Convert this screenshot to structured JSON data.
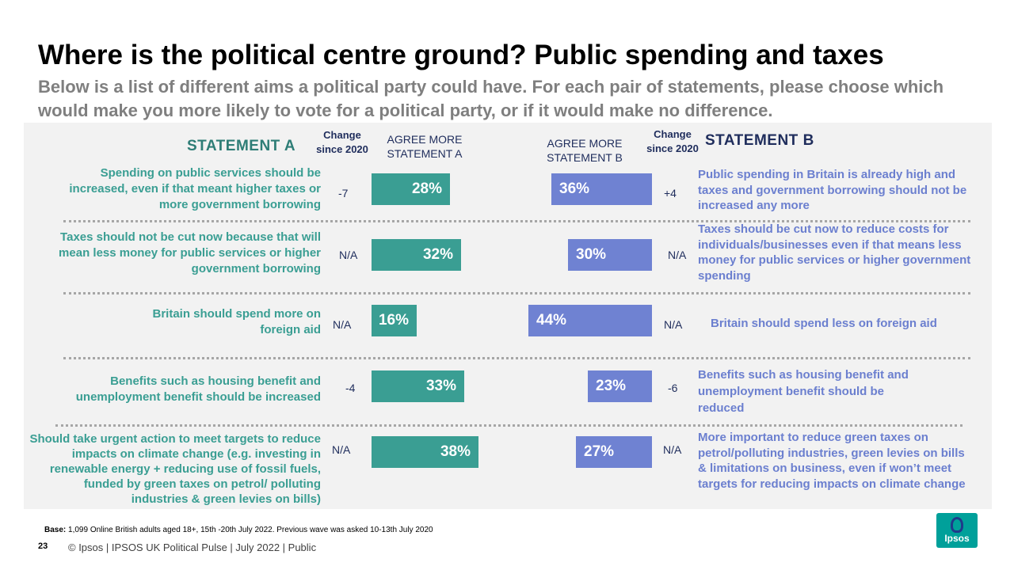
{
  "title": "Where is the political centre ground?  Public spending and taxes",
  "subtitle": "Below is a list of different aims a political party could have.  For each pair of statements, please choose which would make you more likely to vote for a political party, or if it would make no difference.",
  "headers": {
    "statement_a": "STATEMENT A",
    "statement_b": "STATEMENT B",
    "change_since": "Change since 2020",
    "agree_a": "AGREE MORE STATEMENT A",
    "agree_b": "AGREE MORE STATEMENT B"
  },
  "colors": {
    "statement_a": "#3a9e93",
    "statement_b": "#6f82d2"
  },
  "chart_data": {
    "type": "bar",
    "title": "Where is the political centre ground?  Public spending and taxes",
    "unit": "%",
    "series": [
      {
        "name": "AGREE MORE STATEMENT A",
        "values": [
          28,
          32,
          16,
          33,
          38
        ]
      },
      {
        "name": "AGREE MORE STATEMENT B",
        "values": [
          36,
          30,
          44,
          23,
          27
        ]
      }
    ],
    "rows": [
      {
        "statement_a": "Spending on public services should be increased, even if that meant higher taxes or more government borrowing",
        "change_a": "-7",
        "value_a": 28,
        "label_a": "28%",
        "value_b": 36,
        "label_b": "36%",
        "change_b": "+4",
        "statement_b": "Public spending in Britain is already high and taxes and government borrowing should not be increased any more"
      },
      {
        "statement_a": "Taxes should not be cut now because that will mean less money for public services or higher government borrowing",
        "change_a": "N/A",
        "value_a": 32,
        "label_a": "32%",
        "value_b": 30,
        "label_b": "30%",
        "change_b": "N/A",
        "statement_b": "Taxes should be cut now to reduce costs for individuals/businesses even if that means less money for public services or higher government spending"
      },
      {
        "statement_a": "Britain should spend more on foreign aid",
        "change_a": "N/A",
        "value_a": 16,
        "label_a": "16%",
        "value_b": 44,
        "label_b": "44%",
        "change_b": "N/A",
        "statement_b": "Britain should spend less on foreign aid"
      },
      {
        "statement_a": "Benefits such as housing benefit and unemployment benefit should be increased",
        "change_a": "-4",
        "value_a": 33,
        "label_a": "33%",
        "value_b": 23,
        "label_b": "23%",
        "change_b": "-6",
        "statement_b": "Benefits such as housing benefit and unemployment benefit should be reduced"
      },
      {
        "statement_a": "Should take urgent action to meet targets to reduce impacts on climate change (e.g. investing in renewable energy + reducing use of fossil fuels, funded by green taxes on petrol/ polluting industries & green levies on bills)",
        "change_a": "N/A",
        "value_a": 38,
        "label_a": "38%",
        "value_b": 27,
        "label_b": "27%",
        "change_b": "N/A",
        "statement_b": "More important to reduce green taxes on petrol/polluting industries, green levies on bills & limitations on business, even if won’t meet targets for reducing impacts on climate change"
      }
    ]
  },
  "footer": {
    "base_label": "Base:",
    "base_text": "1,099 Online British adults aged 18+, 15th -20th July 2022. Previous wave was asked 10-13th July 2020",
    "page_number": "23",
    "copyright": "© Ipsos |  IPSOS UK Political Pulse | July 2022 | Public",
    "logo_text": "Ipsos"
  }
}
